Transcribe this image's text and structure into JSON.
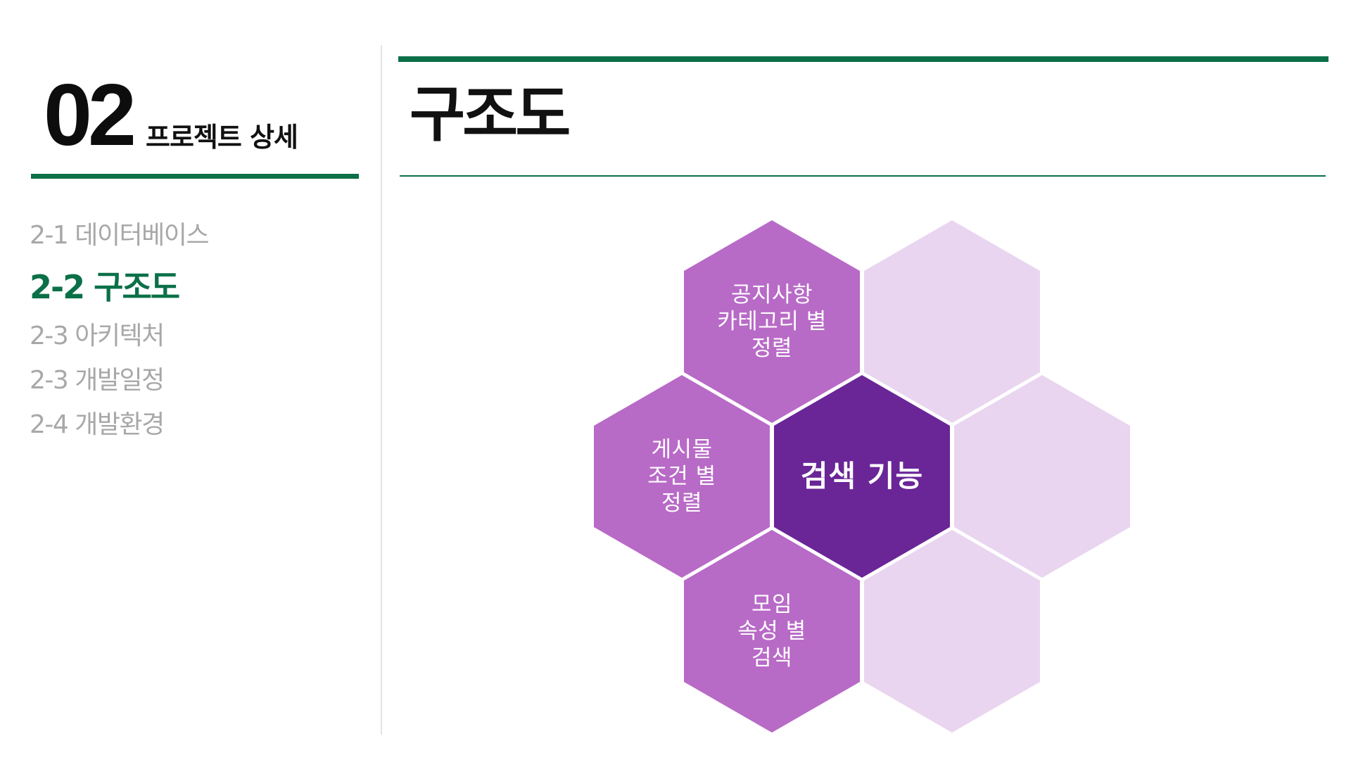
{
  "header": {
    "section_number": "02",
    "section_title": "프로젝트 상세"
  },
  "nav": {
    "items": [
      {
        "label": "2-1 데이터베이스",
        "active": false
      },
      {
        "label": "2-2 구조도",
        "active": true
      },
      {
        "label": "2-3 아키텍처",
        "active": false
      },
      {
        "label": "2-3 개발일정",
        "active": false
      },
      {
        "label": "2-4 개발환경",
        "active": false
      }
    ]
  },
  "main": {
    "title": "구조도"
  },
  "diagram": {
    "center": "검색 기능",
    "top": "공지사항\n카테고리 별\n정렬",
    "left": "게시물\n조건 별\n정렬",
    "bottom": "모임\n속성 별\n검색"
  },
  "colors": {
    "brand_green": "#0b7048",
    "hex_center": "#6a2597",
    "hex_mid": "#b86ac7",
    "hex_light": "#e9d5ef",
    "nav_inactive": "#a8a8a8",
    "divider": "#e3e3e3"
  }
}
